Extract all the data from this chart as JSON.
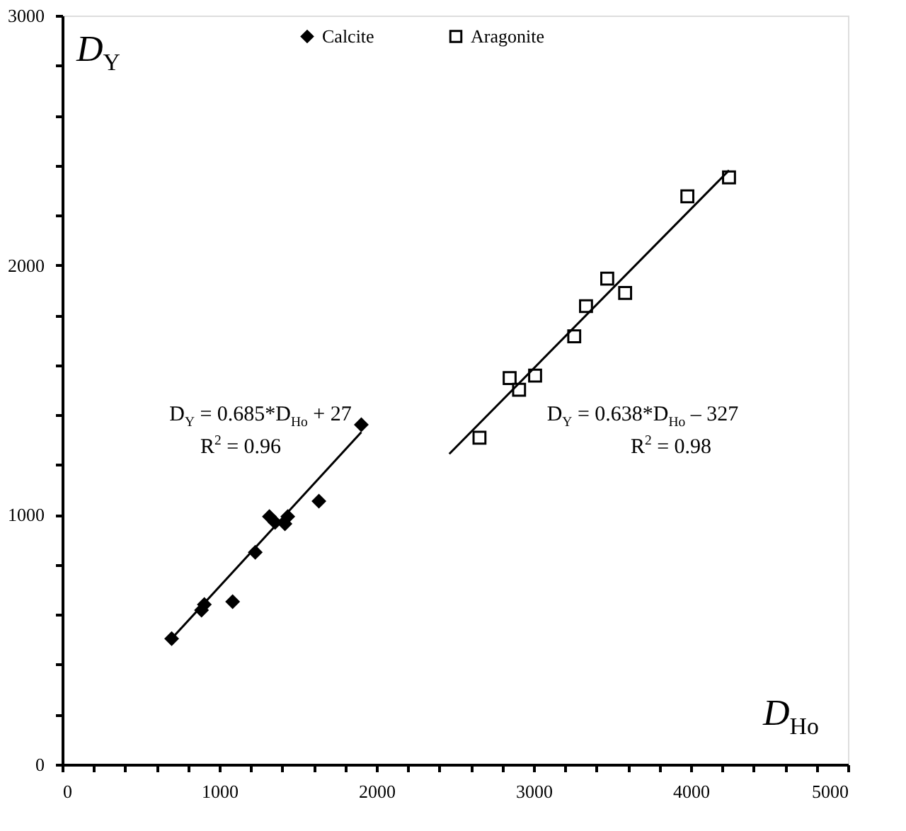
{
  "chart_data": {
    "type": "scatter",
    "xlabel": "D$_{Ho}$",
    "ylabel": "D$_{Y}$",
    "xlim": [
      0,
      5000
    ],
    "ylim": [
      0,
      3000
    ],
    "xticks": [
      0,
      {
        "value": 200,
        "label": null
      },
      {
        "value": 400,
        "label": null
      },
      {
        "value": 600,
        "label": null
      },
      {
        "value": 800,
        "label": null
      },
      1000,
      {
        "value": 1200,
        "label": null
      },
      {
        "value": 1400,
        "label": null
      },
      {
        "value": 1600,
        "label": null
      },
      {
        "value": 1800,
        "label": null
      },
      2000,
      {
        "value": 2200,
        "label": null
      },
      {
        "value": 2400,
        "label": null
      },
      {
        "value": 2600,
        "label": null
      },
      {
        "value": 2800,
        "label": null
      },
      3000,
      {
        "value": 3200,
        "label": null
      },
      {
        "value": 3400,
        "label": null
      },
      {
        "value": 3600,
        "label": null
      },
      {
        "value": 3800,
        "label": null
      },
      4000,
      {
        "value": 4200,
        "label": null
      },
      {
        "value": 4400,
        "label": null
      },
      {
        "value": 4600,
        "label": null
      },
      {
        "value": 4800,
        "label": null
      },
      5000
    ],
    "yticks": [
      0,
      {
        "value": 200,
        "label": null
      },
      {
        "value": 400,
        "label": null
      },
      {
        "value": 600,
        "label": null
      },
      {
        "value": 800,
        "label": null
      },
      1000,
      {
        "value": 1200,
        "label": null
      },
      {
        "value": 1400,
        "label": null
      },
      {
        "value": 1600,
        "label": null
      },
      {
        "value": 1800,
        "label": null
      },
      2000,
      {
        "value": 2200,
        "label": null
      },
      {
        "value": 2400,
        "label": null
      },
      {
        "value": 2600,
        "label": null
      },
      {
        "value": 2800,
        "label": null
      },
      3000
    ],
    "grid": false,
    "legend": "top",
    "series": [
      {
        "name": "Calcite",
        "color": "#000000",
        "marker": "diamond",
        "x": [
          696,
          886,
          904,
          1084,
          1228,
          1318,
          1354,
          1417,
          1435,
          1633,
          1903
        ],
        "values": [
          504,
          618,
          641,
          652,
          850,
          993,
          970,
          964,
          993,
          1055,
          1361
        ]
      },
      {
        "name": "Aragonite",
        "color": "#000000",
        "marker": "square",
        "x": [
          2655,
          2847,
          2907,
          3009,
          3258,
          3333,
          3468,
          3582,
          3978,
          4243
        ],
        "values": [
          1309,
          1548,
          1501,
          1558,
          1715,
          1836,
          1946,
          1889,
          2276,
          2352
        ]
      },
      {
        "type": "line",
        "color": "#000000",
        "x": [
          696,
          1903
        ],
        "values": [
          504,
          1331
        ]
      },
      {
        "type": "line",
        "color": "#000000",
        "x": [
          2463,
          4243
        ],
        "values": [
          1244,
          2380
        ]
      }
    ],
    "annotations": [
      "D$_{Y}$ = 0.685*D$_{Ho}$ + 27",
      "R$^{2}$ = 0.96",
      "D$_{Y}$ = 0.638*D$_{Ho}$ – 327",
      "R$^{2}$ = 0.98"
    ]
  }
}
